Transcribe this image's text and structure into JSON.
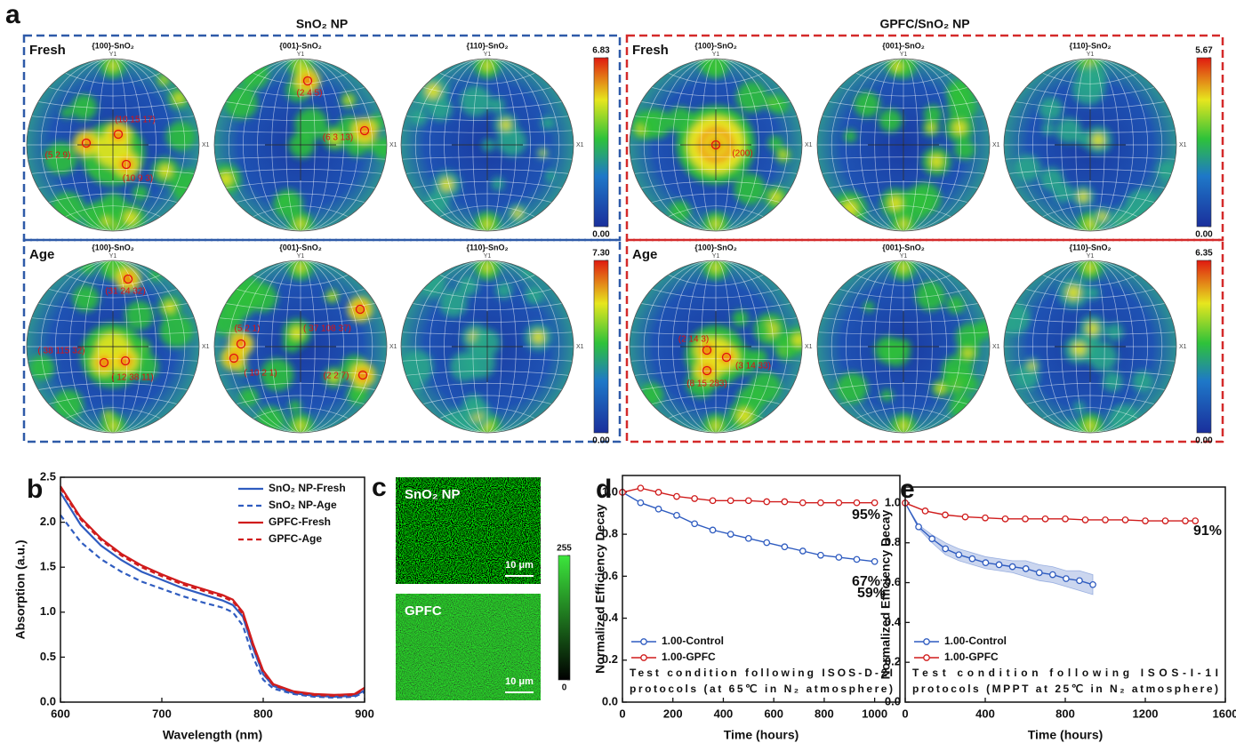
{
  "panel_a": {
    "label": "a",
    "groups": [
      {
        "title": "SnO₂ NP",
        "color": "#2e5aa8",
        "rows": [
          {
            "label": "Fresh",
            "colorbar_ticks": [
              {
                "value": 0,
                "label": "0.00"
              },
              6.83
            ],
            "spheres": [
              {
                "title": "{100}-SnO₂",
                "axes": [
                  "Y1",
                  "X1"
                ],
                "annotations": [
                  "(10 15 17)",
                  "(5 2 9)",
                  "(10 9 3)"
                ]
              },
              {
                "title": "{001}-SnO₂",
                "axes": [
                  "Y1",
                  "X1"
                ],
                "annotations": [
                  "(2 4 5)",
                  "(6 3 13)"
                ]
              },
              {
                "title": "{110}-SnO₂",
                "axes": [
                  "Y1",
                  "X1"
                ],
                "annotations": []
              }
            ]
          },
          {
            "label": "Age",
            "colorbar_ticks": [
              {
                "value": 0,
                "label": "0.00"
              },
              {
                "value": 7.3,
                "label": "7.30"
              }
            ],
            "spheres": [
              {
                "title": "{100}-SnO₂",
                "axes": [
                  "Y1",
                  "X1"
                ],
                "annotations": [
                  "(31 24 32)",
                  "( 38 115 32)",
                  "( 12 38 11)"
                ]
              },
              {
                "title": "{001}-SnO₂",
                "axes": [
                  "Y1",
                  "X1"
                ],
                "annotations": [
                  "(5 2 1)",
                  "( 37 108 37)",
                  "( 10 2 1)",
                  "(2 2 7)"
                ]
              },
              {
                "title": "{110}-SnO₂",
                "axes": [
                  "Y1",
                  "X1"
                ],
                "annotations": []
              }
            ]
          }
        ]
      },
      {
        "title": "GPFC/SnO₂ NP",
        "color": "#d42a2a",
        "rows": [
          {
            "label": "Fresh",
            "colorbar_ticks": [
              {
                "value": 0,
                "label": "0.00"
              },
              5.67
            ],
            "spheres": [
              {
                "title": "{100}-SnO₂",
                "axes": [
                  "Y1",
                  "X1"
                ],
                "annotations": [
                  "(200)"
                ]
              },
              {
                "title": "{001}-SnO₂",
                "axes": [
                  "Y1",
                  "X1"
                ],
                "annotations": []
              },
              {
                "title": "{110}-SnO₂",
                "axes": [
                  "Y1",
                  "X1"
                ],
                "annotations": []
              }
            ]
          },
          {
            "label": "Age",
            "colorbar_ticks": [
              {
                "value": 0,
                "label": "0.00"
              },
              6.35
            ],
            "spheres": [
              {
                "title": "{100}-SnO₂",
                "axes": [
                  "Y1",
                  "X1"
                ],
                "annotations": [
                  "(2 14 3)",
                  "(3 14 33)",
                  "(8 15 283)"
                ]
              },
              {
                "title": "{001}-SnO₂",
                "axes": [
                  "Y1",
                  "X1"
                ],
                "annotations": []
              },
              {
                "title": "{110}-SnO₂",
                "axes": [
                  "Y1",
                  "X1"
                ],
                "annotations": []
              }
            ]
          }
        ]
      }
    ]
  },
  "panel_c": {
    "label": "c",
    "images": [
      {
        "label": "SnO₂ NP",
        "scale_bar": "10 μm"
      },
      {
        "label": "GPFC",
        "scale_bar": "10 μm"
      }
    ],
    "colorbar_ticks": [
      0,
      255
    ]
  },
  "chart_data": [
    {
      "type": "line",
      "panel_label": "b",
      "xlabel": "Wavelength (nm)",
      "ylabel": "Absorption (a.u.)",
      "x": [
        600,
        620,
        640,
        660,
        680,
        700,
        720,
        740,
        760,
        770,
        780,
        790,
        800,
        810,
        830,
        850,
        870,
        890,
        900
      ],
      "xlim": [
        600,
        900
      ],
      "xticks": [
        600,
        700,
        800,
        900
      ],
      "ylim": [
        0,
        2.5
      ],
      "yticks": [
        {
          "value": 0,
          "label": "0.0"
        },
        0.5,
        {
          "value": 1,
          "label": "1.0"
        },
        1.5,
        {
          "value": 2,
          "label": "2.0"
        },
        2.5
      ],
      "legend": "upper right",
      "markers": false,
      "series": [
        {
          "name": "SnO₂ NP-Fresh",
          "color": "#2f5cc0",
          "dash": false,
          "values": [
            2.33,
            1.97,
            1.74,
            1.58,
            1.45,
            1.36,
            1.27,
            1.2,
            1.13,
            1.08,
            0.95,
            0.6,
            0.31,
            0.18,
            0.1,
            0.07,
            0.06,
            0.07,
            0.13
          ]
        },
        {
          "name": "SnO₂ NP-Age",
          "color": "#2f5cc0",
          "dash": true,
          "values": [
            2.08,
            1.78,
            1.59,
            1.45,
            1.34,
            1.26,
            1.18,
            1.11,
            1.05,
            1.0,
            0.85,
            0.5,
            0.25,
            0.15,
            0.09,
            0.06,
            0.05,
            0.06,
            0.11
          ]
        },
        {
          "name": "GPFC-Fresh",
          "color": "#d01c1c",
          "dash": false,
          "values": [
            2.4,
            2.05,
            1.82,
            1.65,
            1.52,
            1.42,
            1.33,
            1.26,
            1.19,
            1.14,
            1.0,
            0.65,
            0.35,
            0.2,
            0.12,
            0.09,
            0.08,
            0.09,
            0.16
          ]
        },
        {
          "name": "GPFC-Age",
          "color": "#d01c1c",
          "dash": true,
          "values": [
            2.38,
            2.03,
            1.8,
            1.63,
            1.5,
            1.4,
            1.31,
            1.24,
            1.17,
            1.12,
            0.98,
            0.63,
            0.33,
            0.19,
            0.11,
            0.08,
            0.07,
            0.08,
            0.15
          ]
        }
      ]
    },
    {
      "type": "line",
      "panel_label": "d",
      "xlabel": "Time (hours)",
      "ylabel": "Normalized Efficiency Decay",
      "x": [
        0,
        72,
        143,
        215,
        286,
        358,
        429,
        500,
        572,
        643,
        715,
        786,
        858,
        929,
        1000
      ],
      "xlim": [
        0,
        1100
      ],
      "xticks": [
        0,
        200,
        400,
        600,
        800,
        1000
      ],
      "ylim": [
        0,
        1.08
      ],
      "yticks": [
        {
          "value": 0,
          "label": "0.0"
        },
        0.2,
        0.4,
        0.6,
        0.8,
        {
          "value": 1,
          "label": "1.0"
        }
      ],
      "legend": "lower left",
      "markers": true,
      "note": [
        "Test condition following ISOS-D-2I",
        "protocols (at 65℃ in N₂ atmosphere)"
      ],
      "annotations": [
        "95%",
        "67%"
      ],
      "series": [
        {
          "name": "1.00-Control",
          "color": "#2f5cc0",
          "dash": false,
          "values": [
            1.0,
            0.95,
            0.92,
            0.89,
            0.85,
            0.82,
            0.8,
            0.78,
            0.76,
            0.74,
            0.72,
            0.7,
            0.69,
            0.68,
            0.67
          ]
        },
        {
          "name": "1.00-GPFC",
          "color": "#d01c1c",
          "dash": false,
          "values": [
            1.0,
            1.02,
            1.0,
            0.98,
            0.97,
            0.96,
            0.96,
            0.96,
            0.955,
            0.955,
            0.95,
            0.95,
            0.95,
            0.95,
            0.95
          ]
        }
      ]
    },
    {
      "type": "line",
      "panel_label": "e",
      "xlabel": "Time (hours)",
      "ylabel": "Normalized Efficiency Decay",
      "xlim": [
        0,
        1600
      ],
      "xticks": [
        0,
        400,
        800,
        1200,
        1600
      ],
      "ylim": [
        0,
        1.08
      ],
      "yticks": [
        {
          "value": 0,
          "label": "0.0"
        },
        0.2,
        0.4,
        0.6,
        0.8,
        {
          "value": 1,
          "label": "1.0"
        }
      ],
      "legend": "lower left",
      "markers": true,
      "note": [
        "Test condition following ISOS-I-1I",
        "protocols (MPPT at 25℃ in N₂ atmosphere)"
      ],
      "annotations": [
        "91%",
        "59%"
      ],
      "series": [
        {
          "name": "1.00-Control",
          "color": "#2f5cc0",
          "dash": false,
          "x": [
            0,
            67,
            134,
            201,
            268,
            335,
            402,
            469,
            536,
            603,
            670,
            737,
            804,
            871,
            938
          ],
          "values": [
            1.0,
            0.88,
            0.82,
            0.77,
            0.74,
            0.72,
            0.7,
            0.69,
            0.68,
            0.67,
            0.65,
            0.64,
            0.62,
            0.61,
            0.59
          ],
          "error": [
            0,
            0.01,
            0.02,
            0.03,
            0.03,
            0.03,
            0.03,
            0.03,
            0.03,
            0.04,
            0.04,
            0.04,
            0.04,
            0.05,
            0.05
          ]
        },
        {
          "name": "1.00-GPFC",
          "color": "#d01c1c",
          "dash": false,
          "x": [
            0,
            100,
            200,
            300,
            400,
            500,
            600,
            700,
            800,
            900,
            1000,
            1100,
            1200,
            1300,
            1400,
            1450
          ],
          "values": [
            1.0,
            0.96,
            0.94,
            0.93,
            0.925,
            0.92,
            0.92,
            0.92,
            0.92,
            0.915,
            0.915,
            0.915,
            0.91,
            0.91,
            0.91,
            0.91
          ]
        }
      ]
    }
  ]
}
